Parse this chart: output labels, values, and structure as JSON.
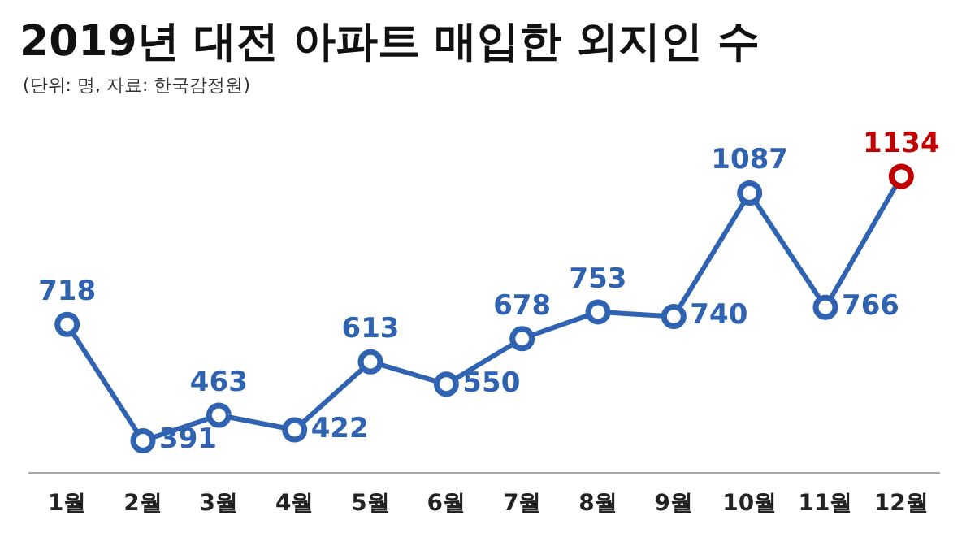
{
  "chart_data": {
    "type": "line",
    "title": "2019년 대전 아파트 매입한 외지인 수",
    "subtitle": "(단위: 명, 자료: 한국감정원)",
    "categories": [
      "1월",
      "2월",
      "3월",
      "4월",
      "5월",
      "6월",
      "7월",
      "8월",
      "9월",
      "10월",
      "11월",
      "12월"
    ],
    "series": [
      {
        "color": "#2f62b0",
        "colors": [
          "#2f62b0",
          "#2f62b0",
          "#2f62b0",
          "#2f62b0",
          "#2f62b0",
          "#2f62b0",
          "#2f62b0",
          "#2f62b0",
          "#2f62b0",
          "#2f62b0",
          "#2f62b0",
          "#c00000"
        ],
        "values": [
          718,
          391,
          463,
          422,
          613,
          550,
          678,
          753,
          740,
          1087,
          766,
          1134
        ]
      }
    ],
    "data_labels": true,
    "marker": "circle",
    "line_style": "solid",
    "grid": false,
    "legend": false,
    "tick_labels": "x"
  }
}
